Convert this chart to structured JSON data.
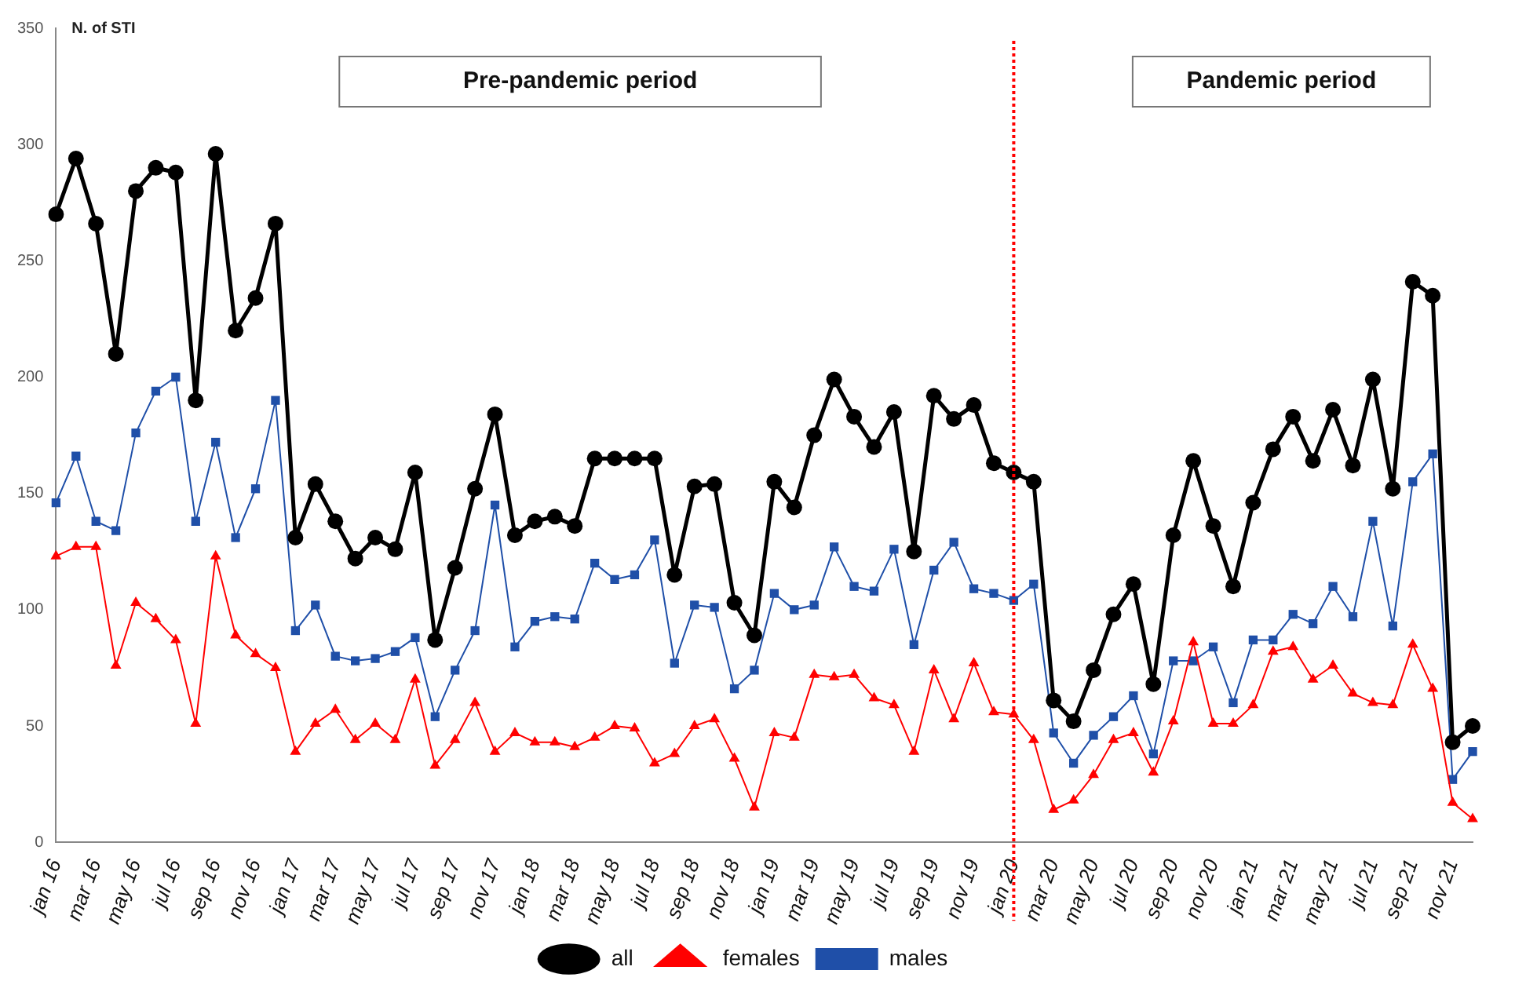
{
  "chart_data": {
    "type": "line",
    "ylabel": "N. of STI",
    "categories": [
      "jan 16",
      null,
      "mar 16",
      null,
      "may 16",
      null,
      "jul 16",
      null,
      "sep 16",
      null,
      "nov 16",
      null,
      "jan 17",
      null,
      "mar 17",
      null,
      "may 17",
      null,
      "jul 17",
      null,
      "sep 17",
      null,
      "nov 17",
      null,
      "jan 18",
      null,
      "mar 18",
      null,
      "may 18",
      null,
      "jul 18",
      null,
      "sep 18",
      null,
      "nov 18",
      null,
      "jan 19",
      null,
      "mar 19",
      null,
      "may 19",
      null,
      "jul 19",
      null,
      "sep 19",
      null,
      "nov 19",
      null,
      "jan 20",
      null,
      "mar 20",
      null,
      "may 20",
      null,
      "jul 20",
      null,
      "sep 20",
      null,
      "nov 20",
      null,
      "jan 21",
      null,
      "mar 21",
      null,
      "may 21",
      null,
      "jul 21",
      null,
      "sep 21",
      null,
      "nov 21",
      null
    ],
    "series": [
      {
        "name": "all",
        "color": "#000000",
        "marker": "circle",
        "values": [
          270,
          294,
          266,
          210,
          280,
          290,
          288,
          190,
          296,
          220,
          234,
          266,
          131,
          154,
          138,
          122,
          131,
          126,
          159,
          87,
          118,
          152,
          184,
          132,
          138,
          140,
          136,
          165,
          165,
          165,
          165,
          115,
          153,
          154,
          103,
          89,
          155,
          144,
          175,
          199,
          183,
          170,
          185,
          125,
          192,
          182,
          188,
          163,
          159,
          155,
          61,
          52,
          74,
          98,
          111,
          68,
          132,
          164,
          136,
          110,
          146,
          169,
          183,
          164,
          186,
          162,
          199,
          152,
          241,
          235,
          43,
          50
        ]
      },
      {
        "name": "females",
        "color": "#ff0000",
        "marker": "triangle",
        "values": [
          123,
          127,
          127,
          76,
          103,
          96,
          87,
          51,
          123,
          89,
          81,
          75,
          39,
          51,
          57,
          44,
          51,
          44,
          70,
          33,
          44,
          60,
          39,
          47,
          43,
          43,
          41,
          45,
          50,
          49,
          34,
          38,
          50,
          53,
          36,
          15,
          47,
          45,
          72,
          71,
          72,
          62,
          59,
          39,
          74,
          53,
          77,
          56,
          55,
          44,
          14,
          18,
          29,
          44,
          47,
          30,
          52,
          86,
          51,
          51,
          59,
          82,
          84,
          70,
          76,
          64,
          60,
          59,
          85,
          66,
          17,
          10
        ]
      },
      {
        "name": "males",
        "color": "#1f4fa8",
        "marker": "square",
        "values": [
          146,
          166,
          138,
          134,
          176,
          194,
          200,
          138,
          172,
          131,
          152,
          190,
          91,
          102,
          80,
          78,
          79,
          82,
          88,
          54,
          74,
          91,
          145,
          84,
          95,
          97,
          96,
          120,
          113,
          115,
          130,
          77,
          102,
          101,
          66,
          74,
          107,
          100,
          102,
          127,
          110,
          108,
          126,
          85,
          117,
          129,
          109,
          107,
          104,
          111,
          47,
          34,
          46,
          54,
          63,
          38,
          78,
          78,
          84,
          60,
          87,
          87,
          98,
          94,
          110,
          97,
          138,
          93,
          155,
          167,
          27,
          39
        ]
      }
    ],
    "ylim": [
      0,
      350
    ],
    "yticks": [
      0,
      50,
      100,
      150,
      200,
      250,
      300,
      350
    ],
    "grid": false,
    "legend": "bottom",
    "line_style": "solid",
    "ref_lines": [
      {
        "axis": "x",
        "value": "jan 20",
        "color": "#ff0000",
        "line_style": "dotted"
      }
    ],
    "annotations": [
      "Pre-pandemic period",
      "Pandemic period"
    ]
  }
}
